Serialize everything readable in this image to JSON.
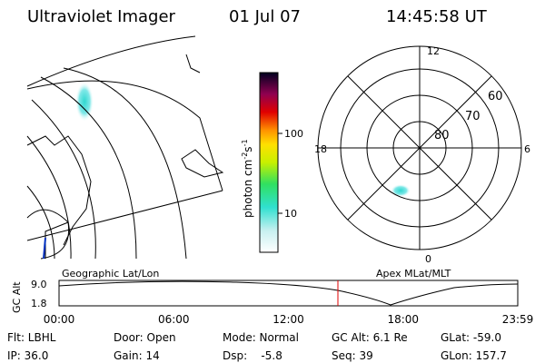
{
  "header": {
    "title": "Ultraviolet Imager",
    "date": "01 Jul 07",
    "time": "14:45:58 UT"
  },
  "colorbar": {
    "label": {
      "unit": "photon cm",
      "exp1": "-2",
      "s": "s",
      "exp2": "-1"
    },
    "ticks": [
      "100",
      "10"
    ]
  },
  "polar": {
    "mlt_labels": [
      "12",
      "18",
      "6",
      "0"
    ],
    "lat_labels": [
      "60",
      "70",
      "80"
    ]
  },
  "map_labels": {
    "left": "Geographic Lat/Lon",
    "right": "Apex MLat/MLT"
  },
  "timeline": {
    "axis_label": "GC Alt",
    "y_labels": [
      "9.0",
      "1.8"
    ],
    "x_labels": [
      "00:00",
      "06:00",
      "12:00",
      "18:00",
      "23:59"
    ]
  },
  "info": [
    [
      "Flt: LBHL",
      "Door: Open",
      "Mode: Normal",
      "GC Alt: 6.1 Re",
      "GLat: -59.0"
    ],
    [
      "IP: 36.0",
      "Gain: 14",
      "Dsp:    -5.8",
      "Seq: 39",
      "GLon: 157.7"
    ]
  ]
}
